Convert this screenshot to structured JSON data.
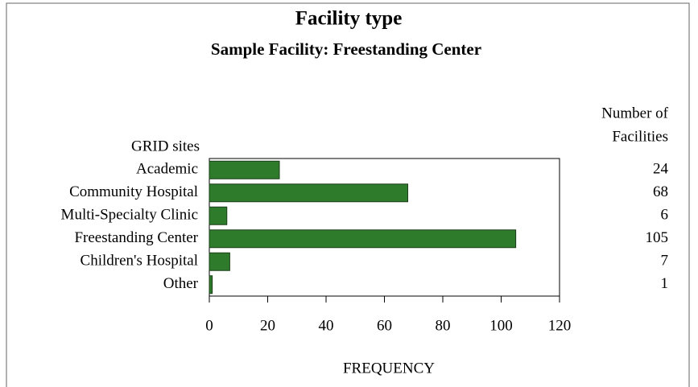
{
  "chart_data": {
    "type": "bar",
    "orientation": "horizontal",
    "title": "Facility type",
    "subtitle": "Sample Facility: Freestanding Center",
    "y_label": "GRID sites",
    "x_label": "FREQUENCY",
    "value_column_title": [
      "Number of",
      "Facilities"
    ],
    "categories": [
      "Academic",
      "Community Hospital",
      "Multi-Specialty Clinic",
      "Freestanding Center",
      "Children's Hospital",
      "Other"
    ],
    "values": [
      24,
      68,
      6,
      105,
      7,
      1
    ],
    "color": "#2f7b2c",
    "xlim": [
      0,
      120
    ],
    "xticks": [
      0,
      20,
      40,
      60,
      80,
      100,
      120
    ]
  }
}
